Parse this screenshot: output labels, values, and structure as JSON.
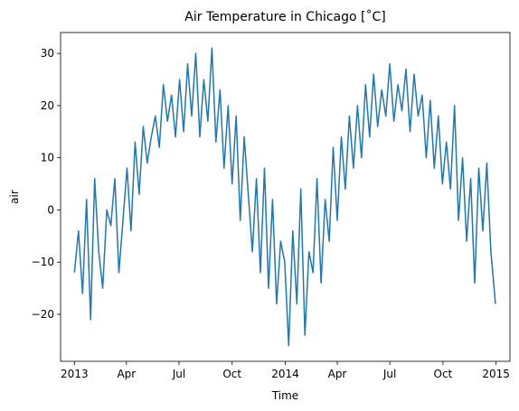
{
  "chart_data": {
    "type": "line",
    "title": "Air Temperature in Chicago [˚C]",
    "xlabel": "Time",
    "ylabel": "air",
    "x_tick_labels": [
      "2013",
      "Apr",
      "Jul",
      "Oct",
      "2014",
      "Apr",
      "Jul",
      "Oct",
      "2015"
    ],
    "x_tick_dates": [
      "2013-01-01",
      "2013-04-01",
      "2013-07-01",
      "2013-10-01",
      "2014-01-01",
      "2014-04-01",
      "2014-07-01",
      "2014-10-01",
      "2015-01-01"
    ],
    "xlim": [
      "2012-12-08",
      "2015-01-25"
    ],
    "y_ticks": [
      -20,
      -10,
      0,
      10,
      20,
      30
    ],
    "ylim": [
      -29,
      34
    ],
    "grid": false,
    "series": [
      {
        "color": "#1f77b4",
        "x": [
          "2013-01-01",
          "2013-01-08",
          "2013-01-15",
          "2013-01-22",
          "2013-01-29",
          "2013-02-05",
          "2013-02-12",
          "2013-02-19",
          "2013-02-26",
          "2013-03-05",
          "2013-03-12",
          "2013-03-19",
          "2013-03-26",
          "2013-04-02",
          "2013-04-09",
          "2013-04-16",
          "2013-04-23",
          "2013-04-30",
          "2013-05-07",
          "2013-05-14",
          "2013-05-21",
          "2013-05-28",
          "2013-06-04",
          "2013-06-11",
          "2013-06-18",
          "2013-06-25",
          "2013-07-02",
          "2013-07-09",
          "2013-07-16",
          "2013-07-23",
          "2013-07-30",
          "2013-08-06",
          "2013-08-13",
          "2013-08-20",
          "2013-08-27",
          "2013-09-03",
          "2013-09-10",
          "2013-09-17",
          "2013-09-24",
          "2013-10-01",
          "2013-10-08",
          "2013-10-15",
          "2013-10-22",
          "2013-10-29",
          "2013-11-05",
          "2013-11-12",
          "2013-11-19",
          "2013-11-26",
          "2013-12-03",
          "2013-12-10",
          "2013-12-17",
          "2013-12-24",
          "2013-12-31",
          "2014-01-07",
          "2014-01-14",
          "2014-01-21",
          "2014-01-28",
          "2014-02-04",
          "2014-02-11",
          "2014-02-18",
          "2014-02-25",
          "2014-03-04",
          "2014-03-11",
          "2014-03-18",
          "2014-03-25",
          "2014-04-01",
          "2014-04-08",
          "2014-04-15",
          "2014-04-22",
          "2014-04-29",
          "2014-05-06",
          "2014-05-13",
          "2014-05-20",
          "2014-05-27",
          "2014-06-03",
          "2014-06-10",
          "2014-06-17",
          "2014-06-24",
          "2014-07-01",
          "2014-07-08",
          "2014-07-15",
          "2014-07-22",
          "2014-07-29",
          "2014-08-05",
          "2014-08-12",
          "2014-08-19",
          "2014-08-26",
          "2014-09-02",
          "2014-09-09",
          "2014-09-16",
          "2014-09-23",
          "2014-09-30",
          "2014-10-07",
          "2014-10-14",
          "2014-10-21",
          "2014-10-28",
          "2014-11-04",
          "2014-11-11",
          "2014-11-18",
          "2014-11-25",
          "2014-12-02",
          "2014-12-09",
          "2014-12-16",
          "2014-12-23",
          "2014-12-31"
        ],
        "y": [
          -12,
          -4,
          -16,
          2,
          -21,
          6,
          -8,
          -15,
          0,
          -3,
          6,
          -12,
          -2,
          8,
          -4,
          13,
          3,
          16,
          9,
          14,
          18,
          12,
          24,
          17,
          22,
          14,
          25,
          15,
          28,
          18,
          30,
          14,
          25,
          17,
          31,
          13,
          23,
          8,
          20,
          5,
          18,
          -2,
          14,
          3,
          -8,
          6,
          -12,
          8,
          -15,
          2,
          -18,
          -6,
          -10,
          -26,
          -4,
          -18,
          4,
          -24,
          -8,
          -12,
          6,
          -14,
          2,
          -6,
          12,
          -2,
          14,
          4,
          18,
          8,
          20,
          10,
          24,
          14,
          26,
          16,
          23,
          18,
          28,
          17,
          24,
          19,
          27,
          15,
          26,
          18,
          22,
          10,
          21,
          8,
          18,
          5,
          13,
          4,
          20,
          -2,
          10,
          -6,
          6,
          -14,
          8,
          -4,
          9,
          -8,
          -18
        ]
      }
    ]
  }
}
